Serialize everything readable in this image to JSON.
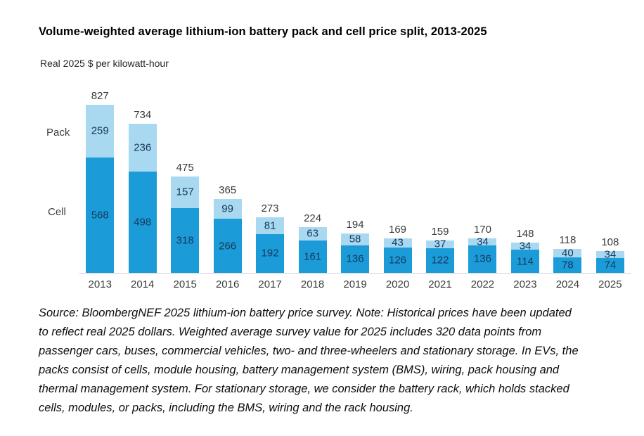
{
  "header": {
    "title": "Volume-weighted average lithium-ion battery pack and cell price split, 2013-2025",
    "subtitle": "Real 2025 $ per kilowatt-hour"
  },
  "chart_data": {
    "type": "bar",
    "stacked": true,
    "title": "Volume-weighted average lithium-ion battery pack and cell price split, 2013-2025",
    "ylabel": "Real 2025 $ per kilowatt-hour",
    "xlabel": "",
    "categories": [
      "2013",
      "2014",
      "2015",
      "2016",
      "2017",
      "2018",
      "2019",
      "2020",
      "2021",
      "2022",
      "2023",
      "2024",
      "2025"
    ],
    "series": [
      {
        "name": "Cell",
        "color": "#1b9cd8",
        "values": [
          568,
          498,
          318,
          266,
          192,
          161,
          136,
          126,
          122,
          136,
          114,
          78,
          74
        ]
      },
      {
        "name": "Pack",
        "color": "#a9d8f1",
        "values": [
          259,
          236,
          157,
          99,
          81,
          63,
          58,
          43,
          37,
          34,
          34,
          40,
          34
        ]
      }
    ],
    "totals": [
      827,
      734,
      475,
      365,
      273,
      224,
      194,
      169,
      159,
      170,
      148,
      118,
      108
    ],
    "ylim": [
      0,
      850
    ],
    "grid": false,
    "legend_position": "left-inline",
    "value_labels": "inside-segments-and-total-above"
  },
  "footer": {
    "source_lines": [
      "Source: BloombergNEF 2025 lithium-ion battery price survey. Note: Historical prices have been updated",
      "to reflect real 2025 dollars. Weighted average survey value for 2025 includes 320 data points from",
      "passenger cars, buses, commercial vehicles, two- and three-wheelers and stationary storage.  In EVs, the",
      "packs consist of cells, module housing, battery management system (BMS), wiring, pack housing and",
      "thermal management system. For stationary storage, we consider the battery rack, which holds stacked",
      "cells, modules, or packs, including the BMS, wiring and the rack housing."
    ]
  },
  "colors": {
    "cell_bar": "#1b9cd8",
    "pack_bar": "#a9d8f1",
    "in_bar_text": "#16365a",
    "axis_line": "#d2d2d2",
    "label_text": "#3a3a3a"
  }
}
